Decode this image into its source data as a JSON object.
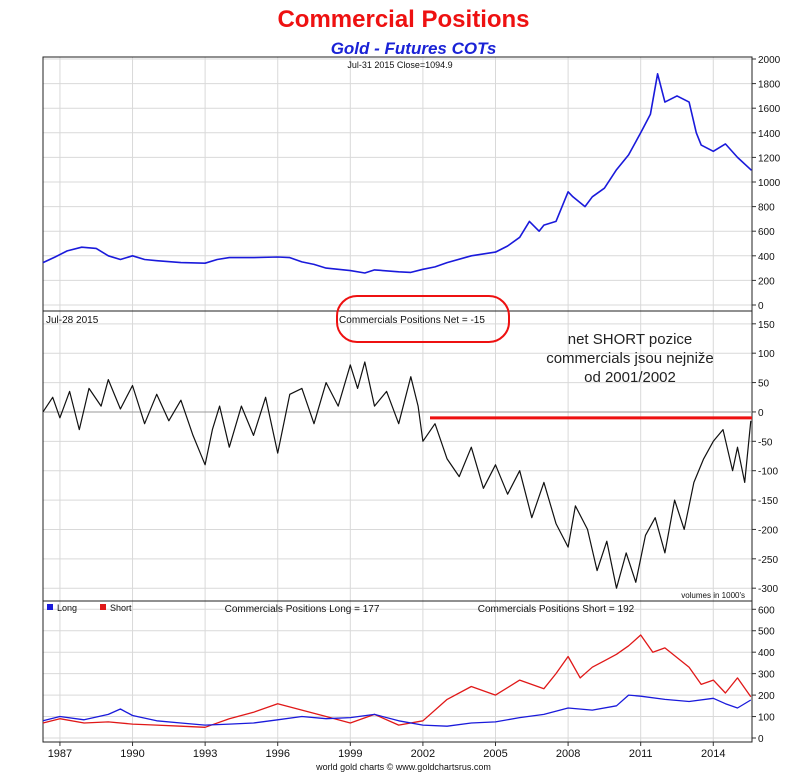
{
  "title": "Commercial Positions",
  "subtitle": "Gold - Futures COTs",
  "annotation": {
    "line1": "net SHORT pozice",
    "line2": "commercials jsou nejniže",
    "line3": "od 2001/2002"
  },
  "footer": "world gold charts © www.goldchartsrus.com",
  "colors": {
    "price": "#1a1adb",
    "net": "#111111",
    "long": "#1a1adb",
    "short": "#e01818",
    "highlight": "#ee1111",
    "grid": "#d9d9d9"
  },
  "chart_data": [
    {
      "type": "line",
      "panel": "price",
      "label": "Jul-31  2015    Close=1094.9",
      "x_range": [
        1986.3,
        2015.6
      ],
      "ylim": [
        0,
        2000
      ],
      "yticks": [
        "0",
        "200",
        "400",
        "600",
        "800",
        "1000",
        "1200",
        "1400",
        "1600",
        "1800",
        "2000"
      ],
      "grid": true,
      "series": [
        {
          "x": [
            1986.3,
            1986.8,
            1987.3,
            1987.9,
            1988.5,
            1989.0,
            1989.5,
            1990.0,
            1990.5,
            1991.0,
            1992.0,
            1993.0,
            1993.5,
            1994.0,
            1995.0,
            1996.0,
            1996.5,
            1997.0,
            1997.5,
            1998.0,
            1999.0,
            1999.6,
            2000.0,
            2001.0,
            2001.5,
            2002.0,
            2002.5,
            2003.0,
            2004.0,
            2005.0,
            2005.5,
            2006.0,
            2006.4,
            2006.8,
            2007.0,
            2007.5,
            2008.0,
            2008.2,
            2008.7,
            2009.0,
            2009.5,
            2010.0,
            2010.5,
            2011.0,
            2011.4,
            2011.7,
            2012.0,
            2012.5,
            2013.0,
            2013.3,
            2013.5,
            2014.0,
            2014.5,
            2015.0,
            2015.58
          ],
          "y": [
            345,
            390,
            440,
            470,
            460,
            400,
            370,
            400,
            370,
            360,
            345,
            340,
            370,
            385,
            385,
            390,
            385,
            350,
            330,
            300,
            280,
            260,
            285,
            270,
            265,
            290,
            310,
            345,
            400,
            430,
            480,
            550,
            680,
            600,
            650,
            680,
            920,
            880,
            800,
            880,
            950,
            1100,
            1220,
            1400,
            1550,
            1880,
            1650,
            1700,
            1650,
            1400,
            1300,
            1250,
            1310,
            1200,
            1095
          ]
        }
      ]
    },
    {
      "type": "line",
      "panel": "net",
      "label": "Jul-28  2015",
      "title": "Commercials Positions Net = -15",
      "note": "volumes in 1000's",
      "x_range": [
        1986.3,
        2015.6
      ],
      "ylim": [
        -315,
        165
      ],
      "yticks": [
        "-300",
        "-250",
        "-200",
        "-150",
        "-100",
        "-50",
        "0",
        "50",
        "100",
        "150"
      ],
      "grid": true,
      "reference_level": -10,
      "series": [
        {
          "x": [
            1986.3,
            1986.7,
            1987.0,
            1987.4,
            1987.8,
            1988.2,
            1988.7,
            1989.0,
            1989.5,
            1990.0,
            1990.5,
            1991.0,
            1991.5,
            1992.0,
            1992.5,
            1993.0,
            1993.3,
            1993.6,
            1994.0,
            1994.5,
            1995.0,
            1995.5,
            1996.0,
            1996.5,
            1997.0,
            1997.5,
            1998.0,
            1998.5,
            1999.0,
            1999.3,
            1999.6,
            2000.0,
            2000.5,
            2001.0,
            2001.5,
            2001.8,
            2002.0,
            2002.5,
            2003.0,
            2003.5,
            2004.0,
            2004.5,
            2005.0,
            2005.5,
            2006.0,
            2006.5,
            2007.0,
            2007.5,
            2008.0,
            2008.3,
            2008.8,
            2009.2,
            2009.6,
            2010.0,
            2010.4,
            2010.8,
            2011.2,
            2011.6,
            2012.0,
            2012.4,
            2012.8,
            2013.2,
            2013.6,
            2014.0,
            2014.4,
            2014.8,
            2015.0,
            2015.3,
            2015.55
          ],
          "y": [
            0,
            25,
            -10,
            35,
            -30,
            40,
            10,
            55,
            5,
            45,
            -20,
            30,
            -15,
            20,
            -40,
            -90,
            -30,
            10,
            -60,
            10,
            -40,
            25,
            -70,
            30,
            40,
            -20,
            50,
            10,
            80,
            40,
            85,
            10,
            35,
            -20,
            60,
            10,
            -50,
            -20,
            -80,
            -110,
            -60,
            -130,
            -90,
            -140,
            -100,
            -180,
            -120,
            -190,
            -230,
            -160,
            -200,
            -270,
            -220,
            -300,
            -240,
            -290,
            -210,
            -180,
            -240,
            -150,
            -200,
            -120,
            -80,
            -50,
            -30,
            -100,
            -60,
            -120,
            -15
          ]
        }
      ]
    },
    {
      "type": "line",
      "panel": "long-short",
      "title_long": "Commercials Positions Long = 177",
      "title_short": "Commercials Positions Short = 192",
      "x_range": [
        1986.3,
        2015.6
      ],
      "ylim": [
        0,
        620
      ],
      "yticks": [
        "0",
        "100",
        "200",
        "300",
        "400",
        "500",
        "600"
      ],
      "xticks": [
        "1987",
        "1990",
        "1993",
        "1996",
        "1999",
        "2002",
        "2005",
        "2008",
        "2011",
        "2014"
      ],
      "grid": true,
      "legend_position": "top-left",
      "series": [
        {
          "name": "Long",
          "x": [
            1986.3,
            1987.0,
            1988.0,
            1989.0,
            1989.5,
            1990.0,
            1991.0,
            1992.0,
            1993.0,
            1994.0,
            1995.0,
            1996.0,
            1997.0,
            1998.0,
            1999.0,
            2000.0,
            2001.0,
            2002.0,
            2003.0,
            2004.0,
            2005.0,
            2006.0,
            2007.0,
            2008.0,
            2009.0,
            2010.0,
            2010.5,
            2011.0,
            2012.0,
            2013.0,
            2014.0,
            2014.5,
            2015.0,
            2015.55
          ],
          "y": [
            80,
            100,
            85,
            110,
            135,
            105,
            80,
            70,
            60,
            65,
            70,
            85,
            100,
            90,
            95,
            110,
            80,
            60,
            55,
            70,
            75,
            95,
            110,
            140,
            130,
            150,
            200,
            195,
            180,
            170,
            185,
            160,
            140,
            177
          ]
        },
        {
          "name": "Short",
          "x": [
            1986.3,
            1987.0,
            1988.0,
            1989.0,
            1990.0,
            1991.0,
            1992.0,
            1993.0,
            1994.0,
            1995.0,
            1996.0,
            1997.0,
            1998.0,
            1999.0,
            2000.0,
            2001.0,
            2002.0,
            2003.0,
            2004.0,
            2005.0,
            2006.0,
            2007.0,
            2007.5,
            2008.0,
            2008.5,
            2009.0,
            2009.5,
            2010.0,
            2010.5,
            2011.0,
            2011.5,
            2012.0,
            2013.0,
            2013.5,
            2014.0,
            2014.5,
            2015.0,
            2015.55
          ],
          "y": [
            70,
            90,
            70,
            75,
            65,
            60,
            55,
            50,
            90,
            120,
            160,
            130,
            100,
            70,
            110,
            60,
            80,
            180,
            240,
            200,
            270,
            230,
            300,
            380,
            280,
            330,
            360,
            390,
            430,
            480,
            400,
            420,
            330,
            250,
            270,
            210,
            280,
            192
          ]
        }
      ]
    }
  ]
}
